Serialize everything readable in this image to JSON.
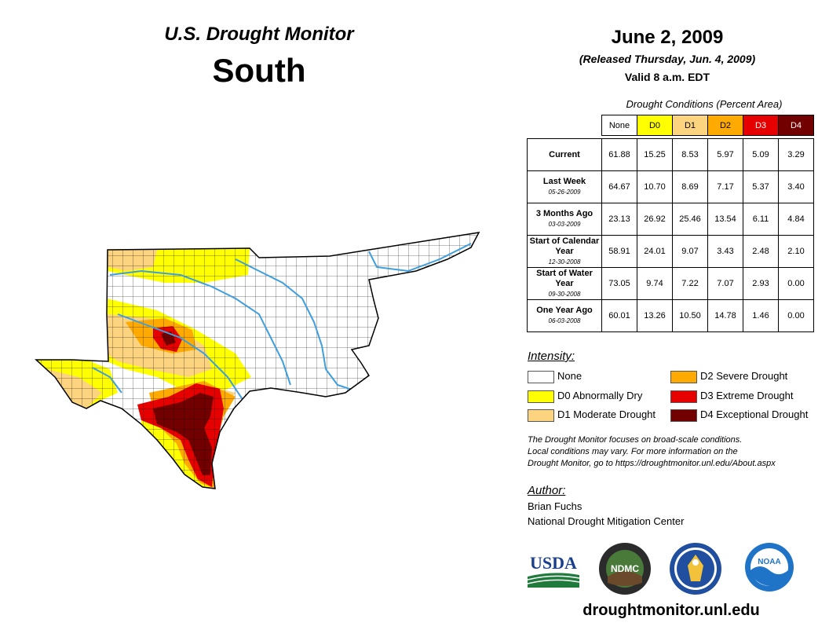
{
  "header": {
    "subtitle": "U.S. Drought Monitor",
    "region": "South",
    "date": "June 2, 2009",
    "released": "(Released Thursday, Jun. 4, 2009)",
    "valid": "Valid 8 a.m. EDT"
  },
  "table": {
    "caption": "Drought Conditions (Percent Area)",
    "columns": [
      "None",
      "D0",
      "D1",
      "D2",
      "D3",
      "D4"
    ],
    "column_colors": [
      "#ffffff",
      "#ffff00",
      "#fcd37f",
      "#ffaa00",
      "#e60000",
      "#730000"
    ],
    "rows": [
      {
        "label": "Current",
        "date": "",
        "values": [
          "61.88",
          "15.25",
          "8.53",
          "5.97",
          "5.09",
          "3.29"
        ]
      },
      {
        "label": "Last Week",
        "date": "05-26-2009",
        "values": [
          "64.67",
          "10.70",
          "8.69",
          "7.17",
          "5.37",
          "3.40"
        ]
      },
      {
        "label": "3 Months Ago",
        "date": "03-03-2009",
        "values": [
          "23.13",
          "26.92",
          "25.46",
          "13.54",
          "6.11",
          "4.84"
        ]
      },
      {
        "label": "Start of Calendar Year",
        "date": "12-30-2008",
        "values": [
          "58.91",
          "24.01",
          "9.07",
          "3.43",
          "2.48",
          "2.10"
        ]
      },
      {
        "label": "Start of Water Year",
        "date": "09-30-2008",
        "values": [
          "73.05",
          "9.74",
          "7.22",
          "7.07",
          "2.93",
          "0.00"
        ]
      },
      {
        "label": "One Year Ago",
        "date": "06-03-2008",
        "values": [
          "60.01",
          "13.26",
          "10.50",
          "14.78",
          "1.46",
          "0.00"
        ]
      }
    ]
  },
  "legend": {
    "title": "Intensity:",
    "items": [
      {
        "label": "None",
        "color": "#ffffff"
      },
      {
        "label": "D0 Abnormally Dry",
        "color": "#ffff00"
      },
      {
        "label": "D1 Moderate Drought",
        "color": "#fcd37f"
      },
      {
        "label": "D2 Severe Drought",
        "color": "#ffaa00"
      },
      {
        "label": "D3 Extreme Drought",
        "color": "#e60000"
      },
      {
        "label": "D4 Exceptional Drought",
        "color": "#730000"
      }
    ]
  },
  "note": {
    "line1": "The Drought Monitor focuses on broad-scale conditions.",
    "line2": "Local conditions may vary. For more information on the",
    "line3": "Drought Monitor, go to https://droughtmonitor.unl.edu/About.aspx"
  },
  "author": {
    "label": "Author:",
    "name": "Brian Fuchs",
    "org": "National Drought Mitigation Center"
  },
  "logos": {
    "usda": "USDA",
    "ndmc": "NDMC",
    "noaa": "NOAA"
  },
  "website": "droughtmonitor.unl.edu",
  "colors": {
    "river": "#3d9ee0",
    "county_line": "#000000"
  }
}
